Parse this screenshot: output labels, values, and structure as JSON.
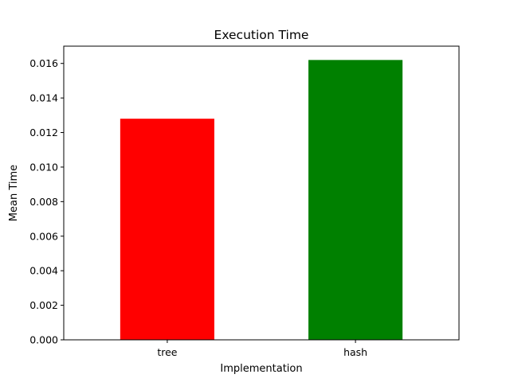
{
  "chart_data": {
    "type": "bar",
    "title": "Execution Time",
    "xlabel": "Implementation",
    "ylabel": "Mean Time",
    "categories": [
      "tree",
      "hash"
    ],
    "values": [
      0.0128,
      0.0162
    ],
    "colors": [
      "#ff0000",
      "#008000"
    ],
    "ylim": [
      0,
      0.017
    ],
    "yticks": [
      0.0,
      0.002,
      0.004,
      0.006,
      0.008,
      0.01,
      0.012,
      0.014,
      0.016
    ],
    "ytick_labels": [
      "0.000",
      "0.002",
      "0.004",
      "0.006",
      "0.008",
      "0.010",
      "0.012",
      "0.014",
      "0.016"
    ],
    "grid": false,
    "legend": "none"
  }
}
